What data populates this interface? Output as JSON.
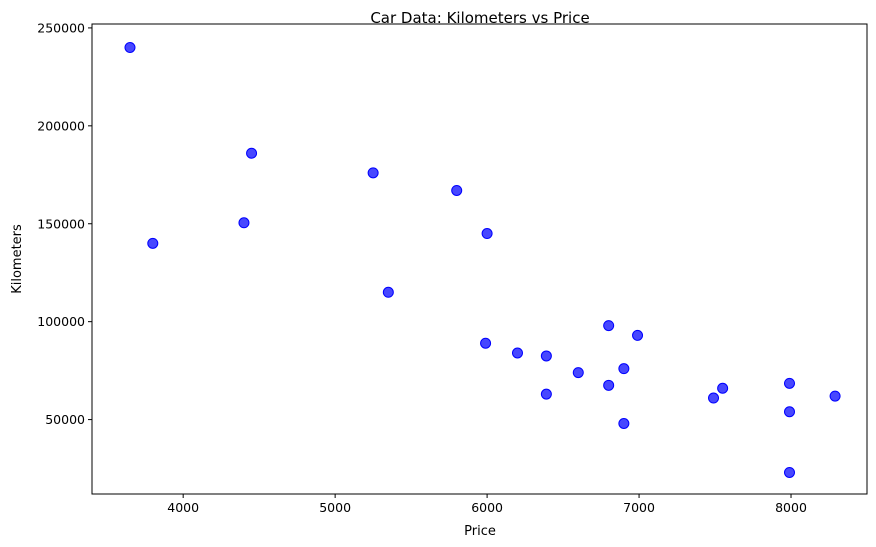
{
  "chart_data": {
    "type": "scatter",
    "title": "Car Data: Kilometers vs Price",
    "xlabel": "Price",
    "ylabel": "Kilometers",
    "xlim": [
      3400,
      8500
    ],
    "ylim": [
      12000,
      252000
    ],
    "xticks": [
      4000,
      5000,
      6000,
      7000,
      8000
    ],
    "yticks": [
      50000,
      100000,
      150000,
      200000,
      250000
    ],
    "grid": false,
    "legend": "none",
    "marker_color": "#0000ff",
    "points": [
      {
        "x": 3650,
        "y": 240000
      },
      {
        "x": 3800,
        "y": 140000
      },
      {
        "x": 4400,
        "y": 150500
      },
      {
        "x": 4450,
        "y": 186000
      },
      {
        "x": 5250,
        "y": 176000
      },
      {
        "x": 5350,
        "y": 115000
      },
      {
        "x": 5800,
        "y": 167000
      },
      {
        "x": 6000,
        "y": 145000
      },
      {
        "x": 5990,
        "y": 89000
      },
      {
        "x": 6200,
        "y": 84000
      },
      {
        "x": 6390,
        "y": 82500
      },
      {
        "x": 6390,
        "y": 63000
      },
      {
        "x": 6600,
        "y": 74000
      },
      {
        "x": 6800,
        "y": 98000
      },
      {
        "x": 6800,
        "y": 67500
      },
      {
        "x": 6900,
        "y": 76000
      },
      {
        "x": 6900,
        "y": 48000
      },
      {
        "x": 6990,
        "y": 93000
      },
      {
        "x": 7490,
        "y": 61000
      },
      {
        "x": 7550,
        "y": 66000
      },
      {
        "x": 7990,
        "y": 68500
      },
      {
        "x": 7990,
        "y": 54000
      },
      {
        "x": 7990,
        "y": 23000
      },
      {
        "x": 8290,
        "y": 62000
      }
    ]
  }
}
